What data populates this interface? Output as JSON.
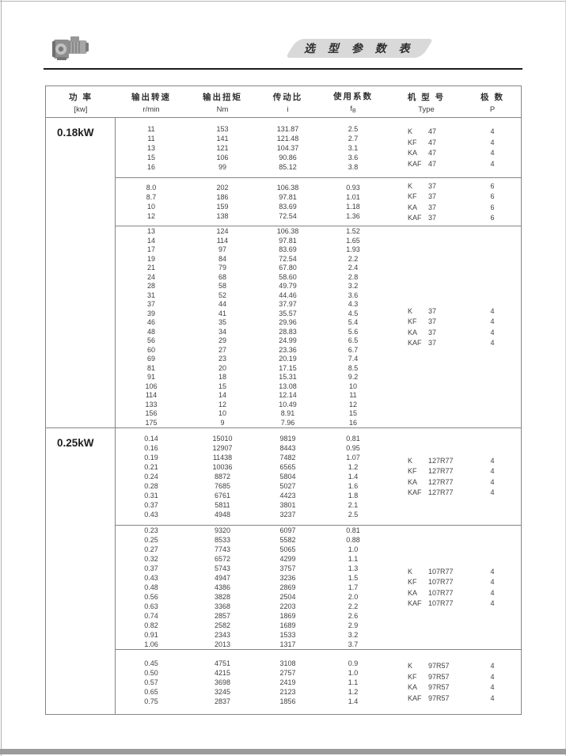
{
  "page": {
    "title": "选 型 参 数 表"
  },
  "header_icon": "gear-motor-photo",
  "table": {
    "headers": {
      "power_zh": "功 率",
      "power_unit": "[kw]",
      "speed_zh": "输出转速",
      "speed_unit": "r/min",
      "torque_zh": "输出扭矩",
      "torque_unit": "Nm",
      "ratio_zh": "传动比",
      "ratio_unit": "i",
      "factor_zh": "使用系数",
      "factor_unit_base": "f",
      "factor_unit_sub": "B",
      "type_zh": "机 型 号",
      "type_unit": "Type",
      "poles_zh": "极 数",
      "poles_unit": "P"
    },
    "sections": [
      {
        "power": "0.18kW",
        "blocks": [
          {
            "rows": [
              [
                "11",
                "153",
                "131.87",
                "2.5"
              ],
              [
                "11",
                "141",
                "121.48",
                "2.7"
              ],
              [
                "13",
                "121",
                "104.37",
                "3.1"
              ],
              [
                "15",
                "106",
                "90.86",
                "3.6"
              ],
              [
                "16",
                "99",
                "85.12",
                "3.8"
              ]
            ],
            "types": [
              [
                "K",
                "47"
              ],
              [
                "KF",
                "47"
              ],
              [
                "KA",
                "47"
              ],
              [
                "KAF",
                "47"
              ]
            ],
            "poles": [
              "4",
              "4",
              "4",
              "4"
            ]
          },
          {
            "rows": [
              [
                "8.0",
                "202",
                "106.38",
                "0.93"
              ],
              [
                "8.7",
                "186",
                "97.81",
                "1.01"
              ],
              [
                "10",
                "159",
                "83.69",
                "1.18"
              ],
              [
                "12",
                "138",
                "72.54",
                "1.36"
              ]
            ],
            "types": [
              [
                "K",
                "37"
              ],
              [
                "KF",
                "37"
              ],
              [
                "KA",
                "37"
              ],
              [
                "KAF",
                "37"
              ]
            ],
            "poles": [
              "6",
              "6",
              "6",
              "6"
            ]
          },
          {
            "rows": [
              [
                "13",
                "124",
                "106.38",
                "1.52"
              ],
              [
                "14",
                "114",
                "97.81",
                "1.65"
              ],
              [
                "17",
                "97",
                "83.69",
                "1.93"
              ],
              [
                "19",
                "84",
                "72.54",
                "2.2"
              ],
              [
                "21",
                "79",
                "67.80",
                "2.4"
              ],
              [
                "24",
                "68",
                "58.60",
                "2.8"
              ],
              [
                "28",
                "58",
                "49.79",
                "3.2"
              ],
              [
                "31",
                "52",
                "44.46",
                "3.6"
              ],
              [
                "37",
                "44",
                "37.97",
                "4.3"
              ],
              [
                "39",
                "41",
                "35.57",
                "4.5"
              ],
              [
                "46",
                "35",
                "29.96",
                "5.4"
              ],
              [
                "48",
                "34",
                "28.83",
                "5.6"
              ],
              [
                "56",
                "29",
                "24.99",
                "6.5"
              ],
              [
                "60",
                "27",
                "23.36",
                "6.7"
              ],
              [
                "69",
                "23",
                "20.19",
                "7.4"
              ],
              [
                "81",
                "20",
                "17.15",
                "8.5"
              ],
              [
                "91",
                "18",
                "15.31",
                "9.2"
              ],
              [
                "106",
                "15",
                "13.08",
                "10"
              ],
              [
                "114",
                "14",
                "12.14",
                "11"
              ],
              [
                "133",
                "12",
                "10.49",
                "12"
              ],
              [
                "156",
                "10",
                "8.91",
                "15"
              ],
              [
                "175",
                "9",
                "7.96",
                "16"
              ]
            ],
            "types": [
              [
                "K",
                "37"
              ],
              [
                "KF",
                "37"
              ],
              [
                "KA",
                "37"
              ],
              [
                "KAF",
                "37"
              ]
            ],
            "poles": [
              "4",
              "4",
              "4",
              "4"
            ]
          }
        ]
      },
      {
        "power": "0.25kW",
        "blocks": [
          {
            "rows": [
              [
                "0.14",
                "15010",
                "9819",
                "0.81"
              ],
              [
                "0.16",
                "12907",
                "8443",
                "0.95"
              ],
              [
                "0.19",
                "11438",
                "7482",
                "1.07"
              ],
              [
                "0.21",
                "10036",
                "6565",
                "1.2"
              ],
              [
                "0.24",
                "8872",
                "5804",
                "1.4"
              ],
              [
                "0.28",
                "7685",
                "5027",
                "1.6"
              ],
              [
                "0.31",
                "6761",
                "4423",
                "1.8"
              ],
              [
                "0.37",
                "5811",
                "3801",
                "2.1"
              ],
              [
                "0.43",
                "4948",
                "3237",
                "2.5"
              ]
            ],
            "types": [
              [
                "K",
                "127R77"
              ],
              [
                "KF",
                "127R77"
              ],
              [
                "KA",
                "127R77"
              ],
              [
                "KAF",
                "127R77"
              ]
            ],
            "poles": [
              "4",
              "4",
              "4",
              "4"
            ]
          },
          {
            "rows": [
              [
                "0.23",
                "9320",
                "6097",
                "0.81"
              ],
              [
                "0.25",
                "8533",
                "5582",
                "0.88"
              ],
              [
                "0.27",
                "7743",
                "5065",
                "1.0"
              ],
              [
                "0.32",
                "6572",
                "4299",
                "1.1"
              ],
              [
                "0.37",
                "5743",
                "3757",
                "1.3"
              ],
              [
                "0.43",
                "4947",
                "3236",
                "1.5"
              ],
              [
                "0.48",
                "4386",
                "2869",
                "1.7"
              ],
              [
                "0.56",
                "3828",
                "2504",
                "2.0"
              ],
              [
                "0.63",
                "3368",
                "2203",
                "2.2"
              ],
              [
                "0.74",
                "2857",
                "1869",
                "2.6"
              ],
              [
                "0.82",
                "2582",
                "1689",
                "2.9"
              ],
              [
                "0.91",
                "2343",
                "1533",
                "3.2"
              ],
              [
                "1.06",
                "2013",
                "1317",
                "3.7"
              ]
            ],
            "types": [
              [
                "K",
                "107R77"
              ],
              [
                "KF",
                "107R77"
              ],
              [
                "KA",
                "107R77"
              ],
              [
                "KAF",
                "107R77"
              ]
            ],
            "poles": [
              "4",
              "4",
              "4",
              "4"
            ]
          },
          {
            "rows": [
              [
                "0.45",
                "4751",
                "3108",
                "0.9"
              ],
              [
                "0.50",
                "4215",
                "2757",
                "1.0"
              ],
              [
                "0.57",
                "3698",
                "2419",
                "1.1"
              ],
              [
                "0.65",
                "3245",
                "2123",
                "1.2"
              ],
              [
                "0.75",
                "2837",
                "1856",
                "1.4"
              ]
            ],
            "types": [
              [
                "K",
                "97R57"
              ],
              [
                "KF",
                "97R57"
              ],
              [
                "KA",
                "97R57"
              ],
              [
                "KAF",
                "97R57"
              ]
            ],
            "poles": [
              "4",
              "4",
              "4",
              "4"
            ]
          }
        ]
      }
    ]
  }
}
